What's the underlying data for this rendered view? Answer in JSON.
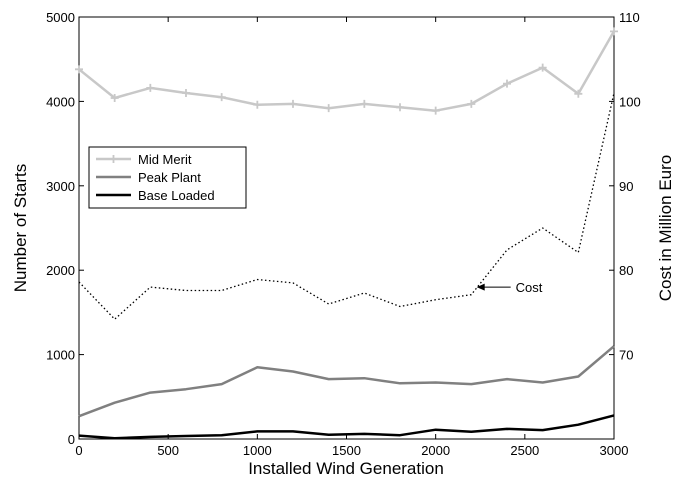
{
  "chart_data": {
    "type": "line",
    "xlabel": "Installed Wind Generation",
    "ylabel_left": "Number of Starts",
    "ylabel_right": "Cost in Million Euro",
    "xlim": [
      0,
      3000
    ],
    "ylim_left": [
      0,
      5000
    ],
    "ylim_right": [
      60,
      110
    ],
    "x_ticks": [
      0,
      500,
      1000,
      1500,
      2000,
      2500,
      3000
    ],
    "y_ticks_left": [
      0,
      1000,
      2000,
      3000,
      4000,
      5000
    ],
    "y_ticks_right": [
      70,
      80,
      90,
      100,
      110
    ],
    "grid": false,
    "legend_position": "left-center",
    "x": [
      0,
      200,
      400,
      600,
      800,
      1000,
      1200,
      1400,
      1600,
      1800,
      2000,
      2200,
      2400,
      2600,
      2800,
      3000
    ],
    "series": [
      {
        "name": "Mid Merit",
        "axis": "left",
        "color": "#c8c8c8",
        "style": "solid-plus-markers",
        "values": [
          4380,
          4040,
          4160,
          4100,
          4050,
          3960,
          3970,
          3920,
          3970,
          3930,
          3890,
          3970,
          4210,
          4400,
          4090,
          4830
        ]
      },
      {
        "name": "Peak Plant",
        "axis": "left",
        "color": "#808080",
        "style": "solid",
        "values": [
          270,
          430,
          550,
          590,
          650,
          850,
          800,
          710,
          720,
          660,
          670,
          650,
          710,
          670,
          740,
          1100
        ]
      },
      {
        "name": "Base Loaded",
        "axis": "left",
        "color": "#000000",
        "style": "solid",
        "values": [
          40,
          10,
          25,
          35,
          45,
          90,
          90,
          50,
          60,
          45,
          110,
          85,
          120,
          105,
          170,
          280
        ]
      },
      {
        "name": "Cost",
        "axis": "right",
        "color": "#000000",
        "style": "dotted",
        "values": [
          78.6,
          74.2,
          78.0,
          77.6,
          77.6,
          78.9,
          78.5,
          76.0,
          77.3,
          75.7,
          76.5,
          77.1,
          82.4,
          85.0,
          82.1,
          101.0
        ]
      }
    ],
    "annotation": {
      "text": "Cost",
      "arrow_target_x": 2230,
      "arrow_target_value": 78.0
    }
  }
}
